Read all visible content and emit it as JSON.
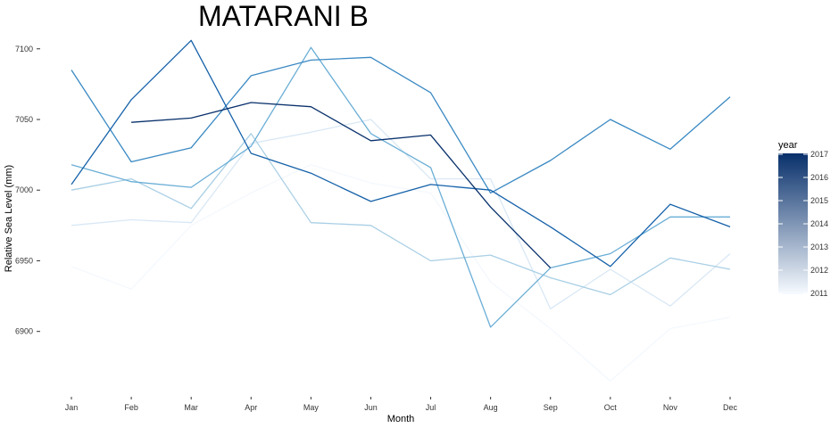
{
  "chart_data": {
    "type": "line",
    "title": "MATARANI B",
    "xlabel": "Month",
    "ylabel": "Relative Sea Level (mm)",
    "categories": [
      "Jan",
      "Feb",
      "Mar",
      "Apr",
      "May",
      "Jun",
      "Jul",
      "Aug",
      "Sep",
      "Oct",
      "Nov",
      "Dec"
    ],
    "ylim": [
      6855,
      7115
    ],
    "yticks": [
      6900,
      6950,
      7000,
      7050,
      7100
    ],
    "grid": false,
    "legend": {
      "title": "year",
      "position": "right",
      "type": "colorbar",
      "labels": [
        "2017",
        "2016",
        "2015",
        "2014",
        "2013",
        "2012",
        "2011"
      ],
      "low_color": "#f7fbff",
      "high_color": "#08306b"
    },
    "series": [
      {
        "name": "2011",
        "color": "#f4f8fd",
        "values": [
          6946,
          6930,
          6975,
          6998,
          7018,
          7005,
          6998,
          6935,
          6902,
          6865,
          6902,
          6910
        ]
      },
      {
        "name": "2012",
        "color": "#d9e8f5",
        "values": [
          6975,
          6979,
          6977,
          7033,
          7041,
          7050,
          7008,
          7008,
          6916,
          6944,
          6918,
          6955
        ]
      },
      {
        "name": "2013",
        "color": "#a9cfe5",
        "values": [
          7000,
          7008,
          6987,
          7040,
          6977,
          6975,
          6950,
          6954,
          6938,
          6926,
          6952,
          6944
        ]
      },
      {
        "name": "2014",
        "color": "#6aaed6",
        "values": [
          7018,
          7006,
          7002,
          7031,
          7101,
          7040,
          7016,
          6903,
          6945,
          6955,
          6981,
          6981
        ]
      },
      {
        "name": "2015",
        "color": "#3a89c3",
        "values": [
          7085,
          7020,
          7030,
          7081,
          7092,
          7094,
          7069,
          6998,
          7021,
          7050,
          7029,
          7066
        ]
      },
      {
        "name": "2016",
        "color": "#1561a9",
        "values": [
          7004,
          7064,
          7106,
          7026,
          7012,
          6992,
          7004,
          7000,
          6974,
          6946,
          6990,
          6974
        ]
      },
      {
        "name": "2017",
        "color": "#08306b",
        "values": [
          null,
          7048,
          7051,
          7062,
          7059,
          7035,
          7039,
          6988,
          6945,
          null,
          null,
          null
        ]
      }
    ]
  }
}
